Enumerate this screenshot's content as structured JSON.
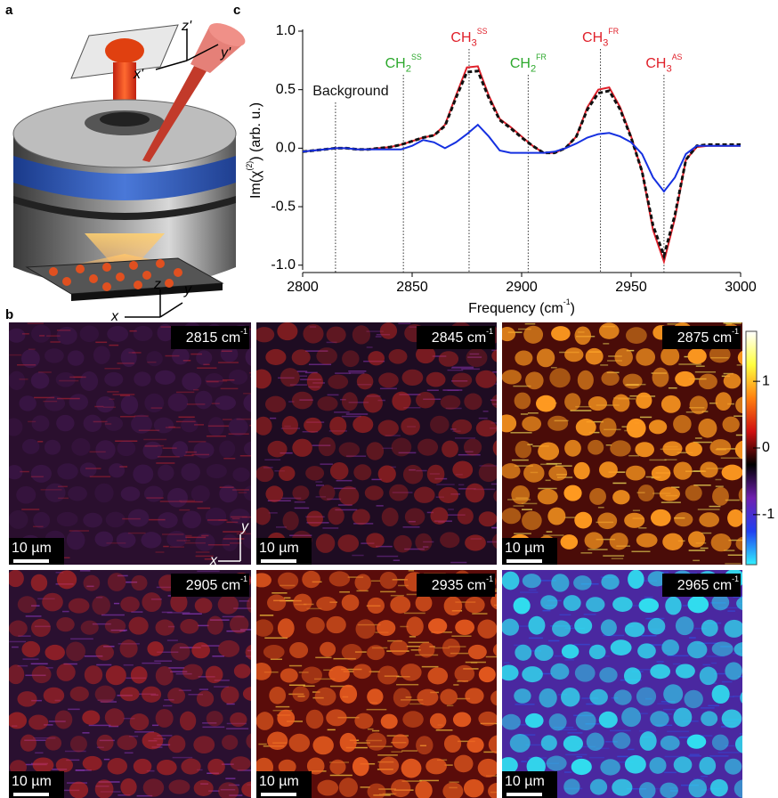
{
  "panel_labels": [
    "a",
    "b",
    "c"
  ],
  "diagram": {
    "axes_top": [
      "z'",
      "y'",
      "x'"
    ],
    "axes_bottom": [
      "z",
      "y",
      "x"
    ]
  },
  "chart_data": {
    "type": "line",
    "xlabel": {
      "text": "Frequency (cm",
      "sup": "-1",
      "end": ")"
    },
    "ylabel": {
      "text": "Im(χ",
      "sup": "(2)",
      "end": ") (arb. u.)"
    },
    "x": [
      2800,
      2805,
      2810,
      2815,
      2820,
      2825,
      2830,
      2835,
      2840,
      2845,
      2850,
      2855,
      2860,
      2865,
      2870,
      2875,
      2880,
      2885,
      2890,
      2895,
      2900,
      2905,
      2910,
      2915,
      2920,
      2925,
      2930,
      2935,
      2940,
      2945,
      2950,
      2955,
      2960,
      2965,
      2970,
      2975,
      2980,
      2985,
      2990,
      2995,
      3000
    ],
    "series": [
      {
        "color": "#e0202a",
        "style": "solid",
        "values": [
          -0.03,
          -0.02,
          -0.01,
          0,
          0,
          -0.01,
          -0.01,
          0,
          0.01,
          0.03,
          0.06,
          0.09,
          0.11,
          0.2,
          0.45,
          0.69,
          0.7,
          0.45,
          0.25,
          0.18,
          0.1,
          0.02,
          -0.04,
          -0.04,
          0,
          0.1,
          0.35,
          0.5,
          0.52,
          0.35,
          0.1,
          -0.2,
          -0.7,
          -0.97,
          -0.6,
          -0.1,
          0.01,
          0.02,
          0.02,
          0.02,
          0.02
        ]
      },
      {
        "color": "#111111",
        "style": "dashed",
        "values": [
          -0.03,
          -0.02,
          -0.01,
          0,
          0,
          -0.01,
          -0.01,
          0,
          0.01,
          0.03,
          0.06,
          0.09,
          0.11,
          0.19,
          0.43,
          0.65,
          0.66,
          0.43,
          0.24,
          0.17,
          0.09,
          0.02,
          -0.04,
          -0.04,
          0,
          0.1,
          0.33,
          0.47,
          0.49,
          0.33,
          0.09,
          -0.2,
          -0.66,
          -0.92,
          -0.57,
          -0.1,
          0.02,
          0.03,
          0.03,
          0.03,
          0.03
        ]
      },
      {
        "color": "#1530e0",
        "style": "solid",
        "values": [
          -0.03,
          -0.02,
          -0.01,
          0,
          0,
          -0.01,
          -0.01,
          -0.01,
          -0.01,
          -0.01,
          0.02,
          0.07,
          0.05,
          0,
          0.05,
          0.12,
          0.2,
          0.1,
          -0.02,
          -0.04,
          -0.04,
          -0.04,
          -0.04,
          -0.03,
          0,
          0.04,
          0.09,
          0.12,
          0.13,
          0.1,
          0.05,
          -0.05,
          -0.25,
          -0.37,
          -0.25,
          -0.05,
          0.02,
          0.02,
          0.02,
          0.02,
          0.02
        ]
      }
    ],
    "xlim": [
      2800,
      3000
    ],
    "xticks": [
      2800,
      2850,
      2900,
      2950,
      3000
    ],
    "ylim": [
      -1.04,
      1.0
    ],
    "yticks": [
      {
        "value": 1.0,
        "label": "1.0"
      },
      {
        "value": 0.5,
        "label": "0.5"
      },
      {
        "value": 0,
        "label": "0.0"
      },
      {
        "value": -0.5,
        "label": "-0.5"
      },
      {
        "value": -1.0,
        "label": "-1.0"
      }
    ],
    "annotations": [
      {
        "x": 2815,
        "text": "Background",
        "color": "#111111"
      },
      {
        "x": 2846,
        "text": "CH",
        "sub": "2",
        "sup": "SS",
        "color": "#2ca82c"
      },
      {
        "x": 2876,
        "text": "CH",
        "sub": "3",
        "sup": "SS",
        "color": "#e0202a"
      },
      {
        "x": 2903,
        "text": "CH",
        "sub": "2",
        "sup": "FR",
        "color": "#2ca82c"
      },
      {
        "x": 2936,
        "text": "CH",
        "sub": "3",
        "sup": "FR",
        "color": "#e0202a"
      },
      {
        "x": 2965,
        "text": "CH",
        "sub": "3",
        "sup": "AS",
        "color": "#e0202a"
      }
    ]
  },
  "images": [
    {
      "label": {
        "text": "2815 cm",
        "sup": "-1"
      },
      "scale": "10 µm",
      "base": "#2a0f2e",
      "spot": "#6b2a8a",
      "streak": "#a02030"
    },
    {
      "label": {
        "text": "2845 cm",
        "sup": "-1"
      },
      "scale": "10 µm",
      "base": "#1e0c22",
      "spot": "#c02820",
      "streak": "#7a2f9a"
    },
    {
      "label": {
        "text": "2875 cm",
        "sup": "-1"
      },
      "scale": "10 µm",
      "base": "#4a0c08",
      "spot": "#ff9a20",
      "streak": "#fff060"
    },
    {
      "label": {
        "text": "2905 cm",
        "sup": "-1"
      },
      "scale": "10 µm",
      "base": "#2a1030",
      "spot": "#d02a20",
      "streak": "#8a38b8"
    },
    {
      "label": {
        "text": "2935 cm",
        "sup": "-1"
      },
      "scale": "10 µm",
      "base": "#5a0c0a",
      "spot": "#f06020",
      "streak": "#ffd040"
    },
    {
      "label": {
        "text": "2965 cm",
        "sup": "-1"
      },
      "scale": "10 µm",
      "base": "#4a28a0",
      "spot": "#30e0f0",
      "streak": "#3050e0"
    }
  ],
  "image_axes": [
    "y",
    "x"
  ],
  "colorbar": {
    "lim": [
      -1.75,
      1.75
    ],
    "ticks": [
      1,
      0,
      -1
    ],
    "colors": [
      "#30f0ff",
      "#2040f0",
      "#7020b0",
      "#000000",
      "#d01010",
      "#ff8010",
      "#ffff40",
      "#ffffff"
    ]
  }
}
